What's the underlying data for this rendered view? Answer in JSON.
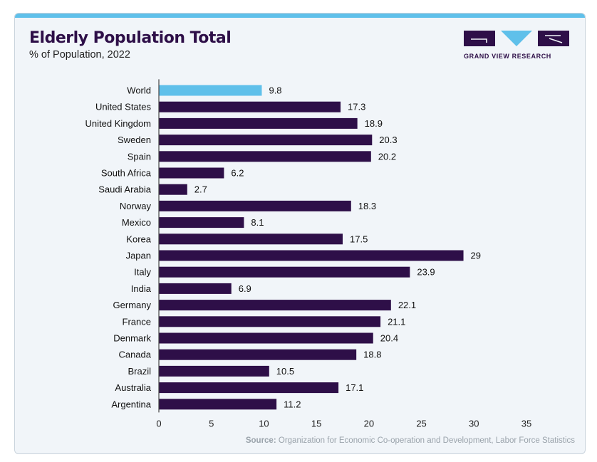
{
  "chart_data": {
    "type": "bar",
    "orientation": "horizontal",
    "title": "Elderly Population Total",
    "subtitle": "% of Population, 2022",
    "categories": [
      "World",
      "United States",
      "United Kingdom",
      "Sweden",
      "Spain",
      "South Africa",
      "Saudi Arabia",
      "Norway",
      "Mexico",
      "Korea",
      "Japan",
      "Italy",
      "India",
      "Germany",
      "France",
      "Denmark",
      "Canada",
      "Brazil",
      "Australia",
      "Argentina"
    ],
    "values": [
      9.8,
      17.3,
      18.9,
      20.3,
      20.2,
      6.2,
      2.7,
      18.3,
      8.1,
      17.5,
      29,
      23.9,
      6.9,
      22.1,
      21.1,
      20.4,
      18.8,
      10.5,
      17.1,
      11.2
    ],
    "value_labels": [
      "9.8",
      "17.3",
      "18.9",
      "20.3",
      "20.2",
      "6.2",
      "2.7",
      "18.3",
      "8.1",
      "17.5",
      "29",
      "23.9",
      "6.9",
      "22.1",
      "21.1",
      "20.4",
      "18.8",
      "10.5",
      "17.1",
      "11.2"
    ],
    "xlim": [
      0,
      35
    ],
    "xticks": [
      0,
      5,
      10,
      15,
      20,
      25,
      30,
      35
    ],
    "xlabel": "",
    "ylabel": "",
    "grid": false,
    "legend": "none",
    "highlight_category": "World",
    "colors": {
      "bar": "#2e0f48",
      "highlight": "#5fc0ea"
    }
  },
  "brand": {
    "name": "GRAND VIEW RESEARCH",
    "color": "#2e0f48"
  },
  "source": {
    "label": "Source:",
    "text": "Organization for Economic Co-operation and Development, Labor Force Statistics"
  }
}
